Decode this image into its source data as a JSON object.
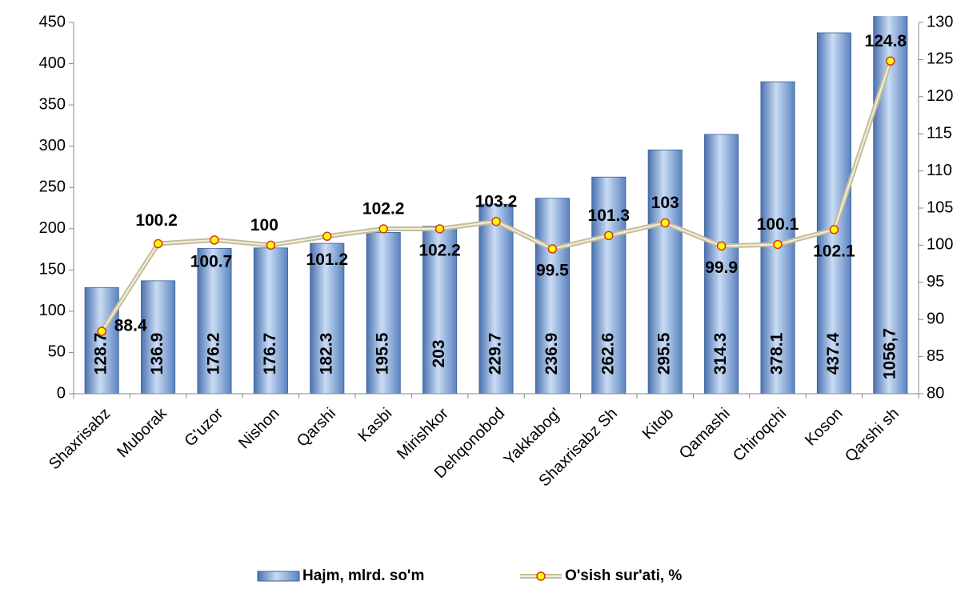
{
  "chart_data": {
    "type": "bar",
    "categories": [
      "Shaxrisabz",
      "Muborak",
      "G'uzor",
      "Nishon",
      "Qarshi",
      "Kasbi",
      "Mirishkor",
      "Dehqonobod",
      "Yakkabog'",
      "Shaxrisabz Sh",
      "Kitob",
      "Qamashi",
      "Chiroqchi",
      "Koson",
      "Qarshi sh"
    ],
    "series": [
      {
        "name": "Hajm, mlrd. so'm",
        "type": "bar",
        "color": "#7fa6dc",
        "values": [
          128.7,
          136.9,
          176.2,
          176.7,
          182.3,
          195.5,
          203,
          229.7,
          236.9,
          262.6,
          295.5,
          314.3,
          378.1,
          437.4,
          1056.7
        ],
        "value_labels": [
          "128.7",
          "136.9",
          "176.2",
          "176.7",
          "182.3",
          "195.5",
          "203",
          "229.7",
          "236.9",
          "262.6",
          "295.5",
          "314.3",
          "378.1",
          "437.4",
          "1056,7"
        ]
      },
      {
        "name": "O'sish sur'ati, %",
        "type": "line",
        "axis": "y2",
        "color": "#c4bd97",
        "marker_color": "#ffff00",
        "values": [
          88.4,
          100.2,
          100.7,
          100,
          101.2,
          102.2,
          102.2,
          103.2,
          99.5,
          101.3,
          103,
          99.9,
          100.1,
          102.1,
          124.8
        ]
      }
    ],
    "ylim": [
      0,
      450
    ],
    "yticks": [
      0,
      50,
      100,
      150,
      200,
      250,
      300,
      350,
      400,
      450
    ],
    "y2lim": [
      80,
      130
    ],
    "y2ticks": [
      80,
      85,
      90,
      95,
      100,
      105,
      110,
      115,
      120,
      125,
      130
    ],
    "grid": false,
    "legend": "bottom"
  }
}
